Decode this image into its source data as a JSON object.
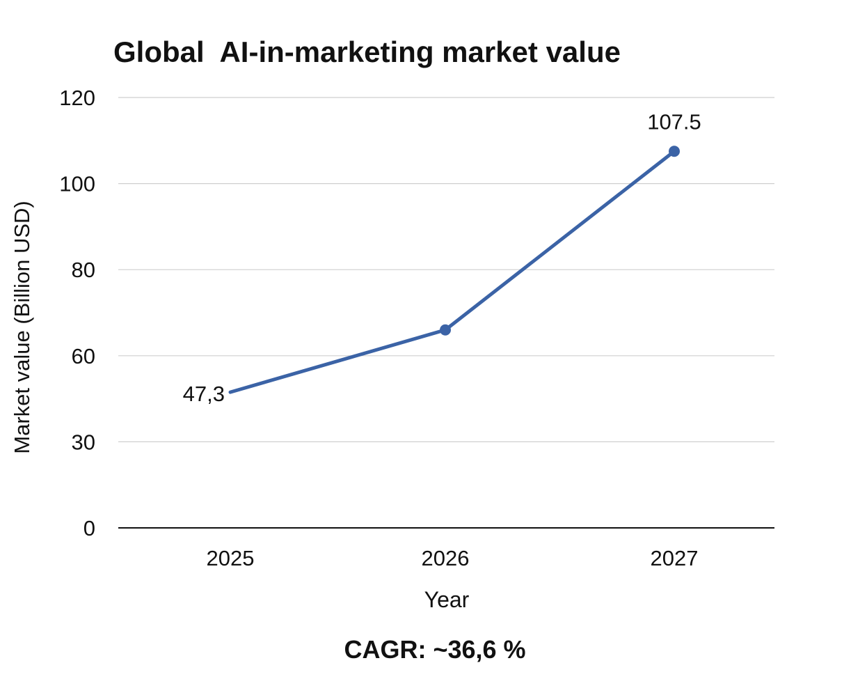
{
  "chart_data": {
    "type": "line",
    "title": "Global  AI-in-marketing market value",
    "xlabel": "Year",
    "ylabel": "Market value (Billion USD)",
    "categories": [
      "2025",
      "2026",
      "2027"
    ],
    "values": [
      47.3,
      66,
      107.5
    ],
    "data_labels": [
      "47,3",
      "",
      "107.5"
    ],
    "yticks": [
      0,
      30,
      60,
      80,
      100,
      120
    ],
    "ylim": [
      0,
      120
    ],
    "grid": true,
    "legend": "none",
    "line_color": "#3b63a6",
    "annotation": "CAGR: ~36,6 %"
  }
}
